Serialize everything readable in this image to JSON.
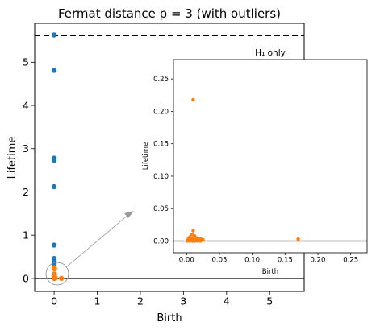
{
  "chart_data": [
    {
      "type": "scatter",
      "title": "Fermat distance p = 3 (with outliers)",
      "xlabel": "Birth",
      "ylabel": "Lifetime",
      "xlim": [
        -0.45,
        5.8
      ],
      "ylim": [
        -0.3,
        5.9
      ],
      "x_ticks": [
        0,
        1,
        2,
        3,
        4,
        5
      ],
      "y_ticks": [
        0,
        1,
        2,
        3,
        4,
        5
      ],
      "x_tick_labels": [
        "0",
        "1",
        "2",
        "3",
        "4",
        "5"
      ],
      "y_tick_labels": [
        "0",
        "1",
        "2",
        "3",
        "4",
        "5"
      ],
      "infinity_line": 5.62,
      "zero_line": 0,
      "series": [
        {
          "color": "#1f77b4",
          "points": [
            [
              0,
              5.63
            ],
            [
              0,
              4.81
            ],
            [
              0,
              2.78
            ],
            [
              0,
              2.73
            ],
            [
              0,
              2.12
            ],
            [
              0,
              0.77
            ],
            [
              0,
              0.46
            ],
            [
              0,
              0.42
            ],
            [
              0,
              0.35
            ],
            [
              0,
              0.31
            ],
            [
              0,
              0.1
            ],
            [
              0,
              0.07
            ],
            [
              0,
              0.04
            ],
            [
              0,
              0.02
            ],
            [
              0,
              0.01
            ]
          ]
        },
        {
          "color": "#ff7f0e",
          "points": [
            [
              0.01,
              0.22
            ],
            [
              0,
              0.25
            ],
            [
              0.01,
              0.1
            ],
            [
              0,
              0.05
            ],
            [
              0.02,
              0.02
            ],
            [
              0.03,
              0.01
            ],
            [
              0.17,
              0.0
            ],
            [
              0.01,
              0.0
            ],
            [
              0,
              0.0
            ]
          ]
        }
      ]
    },
    {
      "type": "scatter",
      "title": "H₁ only",
      "xlabel": "Birth",
      "ylabel": "Lifetime",
      "xlim": [
        -0.02,
        0.275
      ],
      "ylim": [
        -0.018,
        0.28
      ],
      "x_ticks": [
        0,
        0.05,
        0.1,
        0.15,
        0.2,
        0.25
      ],
      "y_ticks": [
        0,
        0.05,
        0.1,
        0.15,
        0.2,
        0.25
      ],
      "x_tick_labels": [
        "0.00",
        "0.05",
        "0.10",
        "0.15",
        "0.20",
        "0.25"
      ],
      "y_tick_labels": [
        "0.00",
        "0.05",
        "0.10",
        "0.15",
        "0.20",
        "0.25"
      ],
      "zero_line": 0,
      "series": [
        {
          "color": "#ff7f0e",
          "points": [
            [
              0.01,
              0.218
            ],
            [
              0.01,
              0.016
            ],
            [
              0.008,
              0.01
            ],
            [
              0.012,
              0.008
            ],
            [
              0.005,
              0.006
            ],
            [
              0.015,
              0.005
            ],
            [
              0.003,
              0.004
            ],
            [
              0.009,
              0.004
            ],
            [
              0.018,
              0.004
            ],
            [
              0.022,
              0.003
            ],
            [
              0.002,
              0.002
            ],
            [
              0.006,
              0.002
            ],
            [
              0.011,
              0.002
            ],
            [
              0.014,
              0.002
            ],
            [
              0.004,
              0.001
            ],
            [
              0.008,
              0.001
            ],
            [
              0.012,
              0.001
            ],
            [
              0.016,
              0.001
            ],
            [
              0.02,
              0.001
            ],
            [
              0.025,
              0.002
            ],
            [
              0.001,
              0.0
            ],
            [
              0.005,
              0.0
            ],
            [
              0.009,
              0.0
            ],
            [
              0.013,
              0.0
            ],
            [
              0.017,
              0.0
            ],
            [
              0.021,
              0.0
            ],
            [
              0.17,
              0.003
            ]
          ]
        }
      ]
    }
  ]
}
